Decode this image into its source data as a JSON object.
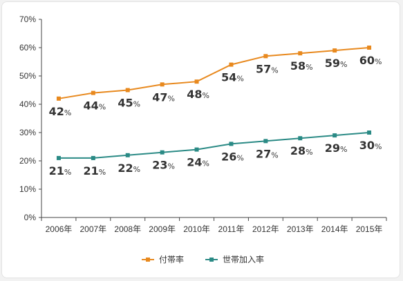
{
  "chart_data": {
    "type": "line",
    "title": "",
    "xlabel": "",
    "ylabel": "",
    "categories": [
      "2006年",
      "2007年",
      "2008年",
      "2009年",
      "2010年",
      "2011年",
      "2012年",
      "2013年",
      "2014年",
      "2015年"
    ],
    "y_ticks": [
      "0%",
      "10%",
      "20%",
      "30%",
      "40%",
      "50%",
      "60%",
      "70%"
    ],
    "ylim": [
      0,
      70
    ],
    "grid": false,
    "legend_position": "bottom",
    "unit_suffix": "%",
    "series": [
      {
        "name": "付帯率",
        "color": "#e8891e",
        "values": [
          42,
          44,
          45,
          47,
          48,
          54,
          57,
          58,
          59,
          60
        ]
      },
      {
        "name": "世帯加入率",
        "color": "#2a8a85",
        "values": [
          21,
          21,
          22,
          23,
          24,
          26,
          27,
          28,
          29,
          30
        ]
      }
    ]
  }
}
